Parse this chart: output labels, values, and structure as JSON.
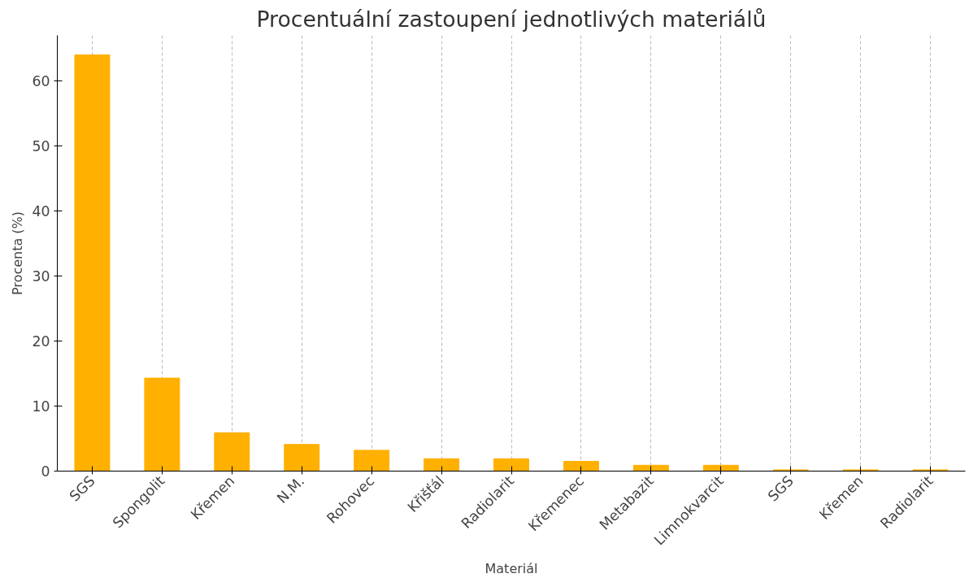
{
  "chart_data": {
    "type": "bar",
    "title": "Procentuální zastoupení jednotlivých materiálů",
    "xlabel": "Materiál",
    "ylabel": "Procenta (%)",
    "categories": [
      "SGS",
      "Spongolit",
      "Křemen",
      "N.M.",
      "Rohovec",
      "Křišťál",
      "Radiolarit",
      "Křemenec",
      "Metabazit",
      "Limnokvarcit",
      "SGS",
      "Křemen",
      "Radiolarit"
    ],
    "values": [
      64.0,
      14.3,
      5.9,
      4.1,
      3.2,
      1.9,
      1.9,
      1.5,
      0.9,
      0.9,
      0.2,
      0.2,
      0.2
    ],
    "color": "#ffb000",
    "ylim": [
      0,
      67
    ],
    "yticks": [
      0,
      10,
      20,
      30,
      40,
      50,
      60
    ],
    "grid": "x"
  }
}
